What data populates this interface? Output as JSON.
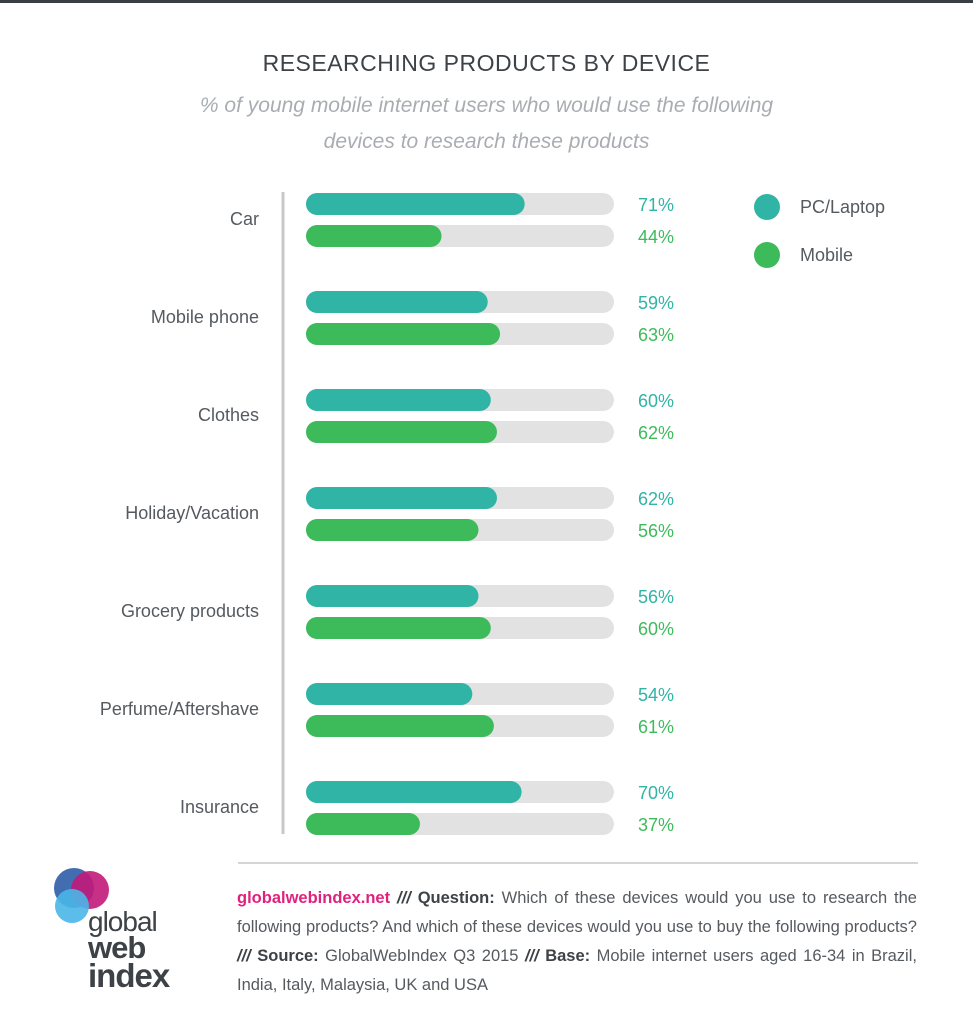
{
  "header": {
    "title": "RESEARCHING PRODUCTS BY DEVICE",
    "subtitle": "% of young mobile internet users who would use the following devices to research these products"
  },
  "colors": {
    "pc": "#2fb4a6",
    "mobile": "#3dbb5b",
    "track": "#e2e2e2"
  },
  "legend": [
    {
      "label": "PC/Laptop",
      "color": "#2fb4a6"
    },
    {
      "label": "Mobile",
      "color": "#3dbb5b"
    }
  ],
  "chart_data": {
    "type": "bar",
    "orientation": "horizontal",
    "title": "RESEARCHING PRODUCTS BY DEVICE",
    "xlim": [
      0,
      100
    ],
    "categories": [
      "Car",
      "Mobile phone",
      "Clothes",
      "Holiday/Vacation",
      "Grocery products",
      "Perfume/Aftershave",
      "Insurance"
    ],
    "series": [
      {
        "name": "PC/Laptop",
        "values": [
          71,
          59,
          60,
          62,
          56,
          54,
          70
        ],
        "labels": [
          "71%",
          "59%",
          "60%",
          "62%",
          "56%",
          "54%",
          "70%"
        ]
      },
      {
        "name": "Mobile",
        "values": [
          44,
          63,
          62,
          56,
          60,
          61,
          37
        ],
        "labels": [
          "44%",
          "63%",
          "62%",
          "56%",
          "60%",
          "61%",
          "37%"
        ]
      }
    ],
    "legend_position": "top-right"
  },
  "footer": {
    "site": "globalwebindex.net",
    "sep": "///",
    "question_label": "Question:",
    "question_text": "Which of these devices would you use to research the following products? And which of these devices would you use to buy the following products?",
    "source_label": "Source:",
    "source_text": "GlobalWebIndex Q3 2015",
    "base_label": "Base:",
    "base_text": "Mobile internet users aged 16-34 in Brazil, India, Italy, Malaysia, UK and USA"
  },
  "logo": {
    "line1": "global",
    "line2": "web",
    "line3": "index"
  }
}
